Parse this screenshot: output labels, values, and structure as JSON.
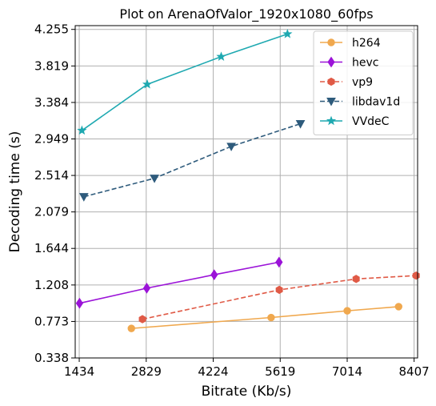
{
  "chart_data": {
    "type": "line",
    "title": "Plot on ArenaOfValor_1920x1080_60fps",
    "xlabel": "Bitrate (Kb/s)",
    "ylabel": "Decoding time (s)",
    "xlim": [
      1350,
      8480
    ],
    "ylim": [
      0.338,
      4.3
    ],
    "xticks": [
      1434,
      2829,
      4224,
      5619,
      7014,
      8407
    ],
    "xtick_labels": [
      "1434",
      "2829",
      "4224",
      "5619",
      "7014",
      "8407"
    ],
    "yticks": [
      0.338,
      0.773,
      1.208,
      1.644,
      2.079,
      2.514,
      2.949,
      3.384,
      3.819,
      4.255
    ],
    "ytick_labels": [
      "0.338",
      "0.773",
      "1.208",
      "1.644",
      "2.079",
      "2.514",
      "2.949",
      "3.384",
      "3.819",
      "4.255"
    ],
    "grid": true,
    "legend_position": "top-right",
    "series": [
      {
        "name": "h264",
        "color": "#f0a84e",
        "linestyle": "solid",
        "marker": "circle",
        "x": [
          2520,
          5430,
          7015,
          8085
        ],
        "y": [
          0.69,
          0.82,
          0.9,
          0.95
        ]
      },
      {
        "name": "hevc",
        "color": "#9b13d8",
        "linestyle": "solid",
        "marker": "diamond",
        "x": [
          1440,
          2840,
          4245,
          5595
        ],
        "y": [
          0.99,
          1.17,
          1.33,
          1.48
        ]
      },
      {
        "name": "vp9",
        "color": "#e05a46",
        "linestyle": "dashed",
        "marker": "hexagon",
        "x": [
          2750,
          5600,
          7200,
          8450
        ],
        "y": [
          0.8,
          1.15,
          1.28,
          1.32
        ]
      },
      {
        "name": "libdav1d",
        "color": "#2e5b7c",
        "linestyle": "dashed",
        "marker": "triangle-down",
        "x": [
          1530,
          3000,
          4600,
          6040
        ],
        "y": [
          2.26,
          2.48,
          2.86,
          3.13
        ]
      },
      {
        "name": "VVdeC",
        "color": "#1fa9b1",
        "linestyle": "solid",
        "marker": "star",
        "x": [
          1490,
          2850,
          4390,
          5770
        ],
        "y": [
          3.05,
          3.6,
          3.93,
          4.2
        ]
      }
    ]
  }
}
